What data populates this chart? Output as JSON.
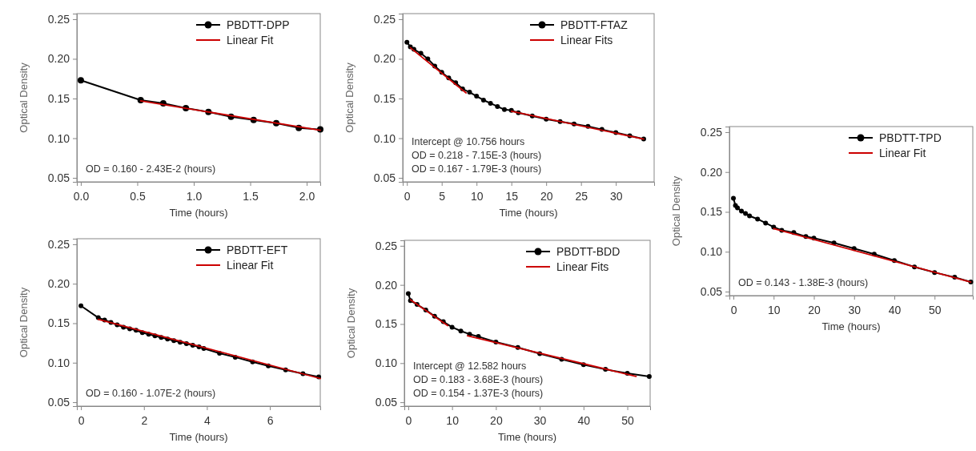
{
  "chart_data": [
    {
      "type": "line",
      "xlabel": "Time (hours)",
      "ylabel": "Optical Density",
      "legend": "top right",
      "xlim": [
        -0.035,
        2.12
      ],
      "ylim": [
        0.045,
        0.257
      ],
      "xticks": [
        {
          "value": 0,
          "label": "0.0"
        },
        {
          "value": 0.5,
          "label": "0.5"
        },
        {
          "value": 1,
          "label": "1.0"
        },
        {
          "value": 1.5,
          "label": "1.5"
        },
        {
          "value": 2,
          "label": "2.0"
        }
      ],
      "yticks": [
        {
          "value": 0.05,
          "label": "0.05"
        },
        {
          "value": 0.1,
          "label": "0.10"
        },
        {
          "value": 0.15,
          "label": "0.15"
        },
        {
          "value": 0.2,
          "label": "0.20"
        },
        {
          "value": 0.25,
          "label": "0.25"
        }
      ],
      "annotations": [
        "OD = 0.160 - 2.43E-2 (hours)"
      ],
      "series": [
        {
          "name": "PBDTT-DPP",
          "type": "line",
          "color": "#000000",
          "marker": "circle",
          "x": [
            0,
            0.53,
            0.73,
            0.93,
            1.13,
            1.33,
            1.53,
            1.73,
            1.93,
            2.12
          ],
          "values": [
            0.173,
            0.148,
            0.144,
            0.138,
            0.133,
            0.127,
            0.123,
            0.119,
            0.113,
            0.111
          ]
        },
        {
          "name": "Linear Fit",
          "type": "line",
          "color": "#cc0000",
          "marker": "none",
          "x": [
            0.53,
            2.12
          ],
          "values": [
            0.147,
            0.11
          ]
        }
      ]
    },
    {
      "type": "line",
      "xlabel": "Time (hours)",
      "ylabel": "Optical Density",
      "legend": "top right",
      "xlim": [
        -0.6,
        35.5
      ],
      "ylim": [
        0.045,
        0.257
      ],
      "xticks": [
        0,
        5,
        10,
        15,
        20,
        25,
        30
      ],
      "yticks": [
        {
          "value": 0.05,
          "label": "0.05"
        },
        {
          "value": 0.1,
          "label": "0.10"
        },
        {
          "value": 0.15,
          "label": "0.15"
        },
        {
          "value": 0.2,
          "label": "0.20"
        },
        {
          "value": 0.25,
          "label": "0.25"
        }
      ],
      "annotations": [
        "Intercept @ 10.756 hours",
        "OD = 0.218 - 7.15E-3 (hours)",
        "OD = 0.167 - 1.79E-3 (hours)"
      ],
      "series": [
        {
          "name": "PBDTT-FTAZ",
          "type": "line",
          "color": "#000000",
          "marker": "circle",
          "x": [
            0,
            0.5,
            1,
            2,
            3,
            4,
            5,
            6,
            7,
            8,
            9,
            10,
            11,
            12,
            13,
            14,
            15,
            16,
            18,
            20,
            22,
            24,
            26,
            28,
            30,
            32,
            34
          ],
          "values": [
            0.221,
            0.215,
            0.212,
            0.207,
            0.2,
            0.191,
            0.183,
            0.176,
            0.17,
            0.162,
            0.158,
            0.153,
            0.148,
            0.144,
            0.14,
            0.136,
            0.135,
            0.132,
            0.128,
            0.124,
            0.121,
            0.118,
            0.115,
            0.111,
            0.107,
            0.103,
            0.099
          ]
        },
        {
          "name": "Linear Fits",
          "type": "line",
          "color": "#cc0000",
          "marker": "none",
          "x": [
            0.5,
            8.5
          ],
          "values": [
            0.214,
            0.157
          ]
        },
        {
          "type": "line",
          "color": "#cc0000",
          "marker": "none",
          "x": [
            15,
            34
          ],
          "values": [
            0.134,
            0.099
          ]
        }
      ]
    },
    {
      "type": "line",
      "xlabel": "Time (hours)",
      "ylabel": "Optical Density",
      "legend": "top right",
      "xlim": [
        -1,
        59.5
      ],
      "ylim": [
        0.045,
        0.257
      ],
      "xticks": [
        0,
        10,
        20,
        30,
        40,
        50
      ],
      "yticks": [
        {
          "value": 0.05,
          "label": "0.05"
        },
        {
          "value": 0.1,
          "label": "0.10"
        },
        {
          "value": 0.15,
          "label": "0.15"
        },
        {
          "value": 0.2,
          "label": "0.20"
        },
        {
          "value": 0.25,
          "label": "0.25"
        }
      ],
      "annotations": [
        "OD = 0.143 - 1.38E-3 (hours)"
      ],
      "series": [
        {
          "name": "PBDTT-TPD",
          "type": "line",
          "color": "#000000",
          "marker": "circle",
          "x": [
            0,
            0.5,
            1,
            2,
            3,
            4,
            6,
            8,
            10,
            12,
            15,
            18,
            20,
            25,
            30,
            35,
            40,
            45,
            50,
            55,
            59
          ],
          "values": [
            0.167,
            0.158,
            0.155,
            0.151,
            0.148,
            0.145,
            0.141,
            0.136,
            0.131,
            0.127,
            0.124,
            0.119,
            0.117,
            0.111,
            0.104,
            0.097,
            0.089,
            0.081,
            0.074,
            0.068,
            0.062
          ]
        },
        {
          "name": "Linear Fit",
          "type": "line",
          "color": "#cc0000",
          "marker": "none",
          "x": [
            10,
            59
          ],
          "values": [
            0.129,
            0.062
          ]
        }
      ]
    },
    {
      "type": "line",
      "xlabel": "Time (hours)",
      "ylabel": "Optical Density",
      "legend": "top right",
      "xlim": [
        -0.13,
        7.6
      ],
      "ylim": [
        0.045,
        0.257
      ],
      "xticks": [
        0,
        2,
        4,
        6
      ],
      "yticks": [
        {
          "value": 0.05,
          "label": "0.05"
        },
        {
          "value": 0.1,
          "label": "0.10"
        },
        {
          "value": 0.15,
          "label": "0.15"
        },
        {
          "value": 0.2,
          "label": "0.20"
        },
        {
          "value": 0.25,
          "label": "0.25"
        }
      ],
      "annotations": [
        "OD = 0.160 - 1.07E-2 (hours)"
      ],
      "series": [
        {
          "name": "PBDTT-EFT",
          "type": "line",
          "color": "#000000",
          "marker": "circle",
          "x": [
            0,
            0.55,
            0.75,
            0.95,
            1.15,
            1.35,
            1.55,
            1.75,
            1.95,
            2.15,
            2.35,
            2.55,
            2.75,
            2.95,
            3.15,
            3.35,
            3.55,
            3.75,
            3.9,
            4.4,
            4.9,
            5.45,
            5.95,
            6.5,
            7.05,
            7.55
          ],
          "values": [
            0.172,
            0.157,
            0.154,
            0.151,
            0.148,
            0.145,
            0.143,
            0.141,
            0.138,
            0.136,
            0.134,
            0.132,
            0.13,
            0.128,
            0.126,
            0.124,
            0.122,
            0.12,
            0.118,
            0.112,
            0.107,
            0.101,
            0.096,
            0.091,
            0.086,
            0.082
          ]
        },
        {
          "name": "Linear Fit",
          "type": "line",
          "color": "#cc0000",
          "marker": "none",
          "x": [
            0.55,
            7.6
          ],
          "values": [
            0.155,
            0.08
          ]
        }
      ]
    },
    {
      "type": "line",
      "xlabel": "Time (hours)",
      "ylabel": "Optical Density",
      "legend": "top right",
      "xlim": [
        -0.9,
        55.2
      ],
      "ylim": [
        0.045,
        0.257
      ],
      "xticks": [
        0,
        10,
        20,
        30,
        40,
        50
      ],
      "yticks": [
        {
          "value": 0.05,
          "label": "0.05"
        },
        {
          "value": 0.1,
          "label": "0.10"
        },
        {
          "value": 0.15,
          "label": "0.15"
        },
        {
          "value": 0.2,
          "label": "0.20"
        },
        {
          "value": 0.25,
          "label": "0.25"
        }
      ],
      "annotations": [
        "Intercept @ 12.582 hours",
        "OD = 0.183 - 3.68E-3 (hours)",
        "OD = 0.154 - 1.37E-3 (hours)"
      ],
      "series": [
        {
          "name": "PBDTT-BDD",
          "type": "line",
          "color": "#000000",
          "marker": "circle",
          "x": [
            0,
            0.5,
            2,
            4,
            6,
            8,
            10,
            12,
            14,
            16,
            20,
            25,
            30,
            35,
            40,
            45,
            50,
            55
          ],
          "values": [
            0.189,
            0.18,
            0.175,
            0.168,
            0.16,
            0.153,
            0.146,
            0.141,
            0.137,
            0.134,
            0.127,
            0.12,
            0.112,
            0.105,
            0.098,
            0.092,
            0.087,
            0.083
          ]
        },
        {
          "name": "Linear Fits",
          "type": "line",
          "color": "#cc0000",
          "marker": "none",
          "x": [
            0.5,
            9
          ],
          "values": [
            0.181,
            0.148
          ]
        },
        {
          "type": "line",
          "color": "#cc0000",
          "marker": "none",
          "x": [
            13.5,
            52
          ],
          "values": [
            0.135,
            0.083
          ]
        }
      ]
    }
  ]
}
